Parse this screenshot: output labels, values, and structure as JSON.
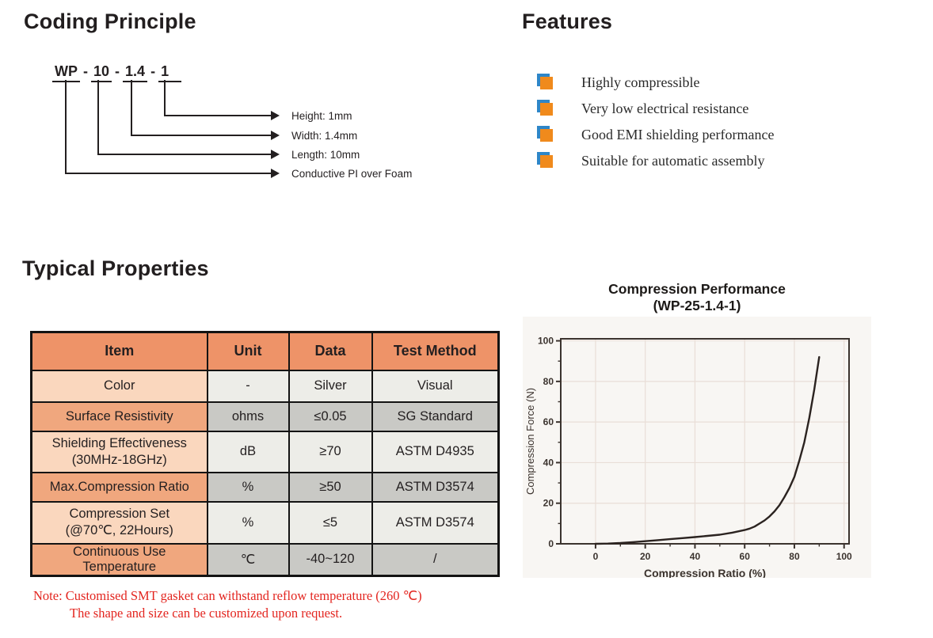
{
  "coding_principle": {
    "title": "Coding Principle",
    "code_segments": [
      "WP",
      "10",
      "1.4",
      "1"
    ],
    "separator": "-",
    "labels": [
      "Height: 1mm",
      "Width: 1.4mm",
      "Length: 10mm",
      "Conductive PI over Foam"
    ]
  },
  "features": {
    "title": "Features",
    "items": [
      "Highly compressible",
      "Very low electrical resistance",
      "Good EMI shielding performance",
      "Suitable for automatic assembly"
    ],
    "bullet_front_color": "#f08a1c",
    "bullet_back_color": "#2e86c8"
  },
  "typical_properties": {
    "title": "Typical Properties",
    "table": {
      "headers": [
        "Item",
        "Unit",
        "Data",
        "Test Method"
      ],
      "rows": [
        {
          "item": "Color",
          "unit": "-",
          "data": "Silver",
          "test_method": "Visual"
        },
        {
          "item": "Surface Resistivity",
          "unit": "ohms",
          "data": "≤0.05",
          "test_method": "SG Standard"
        },
        {
          "item": "Shielding Effectiveness\n(30MHz-18GHz)",
          "unit": "dB",
          "data": "≥70",
          "test_method": "ASTM D4935"
        },
        {
          "item": "Max.Compression Ratio",
          "unit": "%",
          "data": "≥50",
          "test_method": "ASTM D3574"
        },
        {
          "item": "Compression Set\n(@70℃, 22Hours)",
          "unit": "%",
          "data": "≤5",
          "test_method": "ASTM D3574"
        },
        {
          "item": "Continuous Use Temperature",
          "unit": "℃",
          "data": "-40~120",
          "test_method": "/"
        }
      ],
      "header_color": "#ee9368",
      "item_col_light": "#fad7be",
      "item_col_dark": "#f0a77e",
      "value_col_light": "#edede8",
      "value_col_dark": "#c9c9c5"
    },
    "note_line1": "Note: Customised SMT gasket can withstand reflow temperature (260 ℃)",
    "note_line2": "The shape and size can be customized upon request.",
    "note_color": "#e3251f"
  },
  "chart_data": {
    "type": "line",
    "title": "Compression Performance",
    "subtitle": "(WP-25-1.4-1)",
    "xlabel": "Compression Ratio (%)",
    "ylabel": "Compression Force (N)",
    "xlim": [
      0,
      100
    ],
    "ylim": [
      0,
      100
    ],
    "xticks": [
      0,
      20,
      40,
      60,
      80,
      100
    ],
    "yticks": [
      0,
      20,
      40,
      60,
      80,
      100
    ],
    "minor_tick_step": 10,
    "grid": true,
    "legend_position": "none",
    "line_color": "#2b2320",
    "series": [
      {
        "name": "WP-25-1.4-1",
        "x": [
          0,
          5,
          10,
          15,
          20,
          25,
          30,
          35,
          40,
          45,
          50,
          55,
          60,
          62,
          64,
          66,
          68,
          70,
          72,
          74,
          76,
          78,
          80,
          82,
          84,
          86,
          88,
          90
        ],
        "y": [
          0,
          0.1,
          0.4,
          0.8,
          1.3,
          1.8,
          2.3,
          2.8,
          3.3,
          3.9,
          4.5,
          5.5,
          6.8,
          7.5,
          8.5,
          10,
          11.5,
          13.5,
          16,
          19,
          23,
          27.5,
          33,
          41,
          50,
          62,
          76,
          92
        ]
      }
    ]
  }
}
